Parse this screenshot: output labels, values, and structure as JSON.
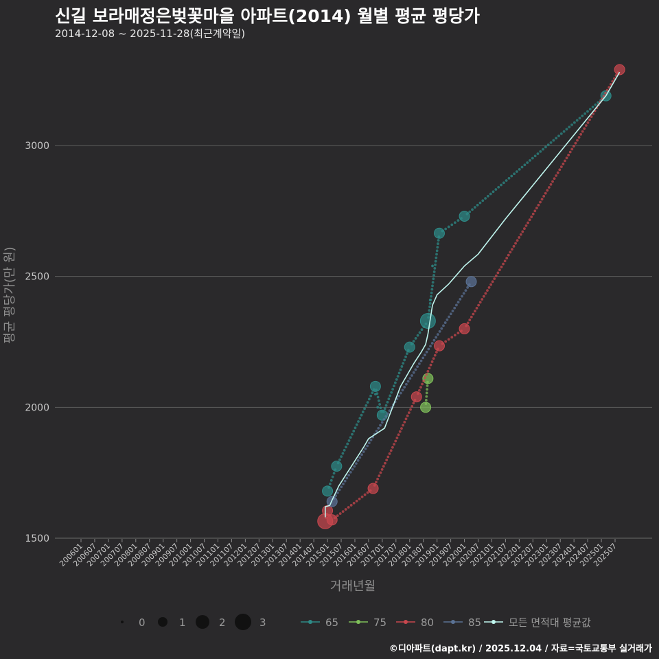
{
  "title": "신길 보라매정은벚꽃마을 아파트(2014) 월별 평균 평당가",
  "subtitle": "2014-12-08 ~ 2025-11-28(최근계약일)",
  "credit": "©디아파트(dapt.kr) / 2025.12.04 / 자료=국토교통부 실거래가",
  "chart_data": {
    "type": "line",
    "xlabel": "거래년월",
    "ylabel": "평균 평당가(만 원)",
    "ylim": [
      1500,
      3300
    ],
    "yticks": [
      1500,
      2000,
      2500,
      3000
    ],
    "x_categories": [
      "200601",
      "200607",
      "200701",
      "200707",
      "200801",
      "200807",
      "200901",
      "200907",
      "201001",
      "201007",
      "201101",
      "201107",
      "201201",
      "201207",
      "201301",
      "201307",
      "201401",
      "201407",
      "201501",
      "201507",
      "201601",
      "201607",
      "201701",
      "201707",
      "201801",
      "201807",
      "201901",
      "201907",
      "202001",
      "202007",
      "202101",
      "202107",
      "202201",
      "202207",
      "202301",
      "202307",
      "202401",
      "202407",
      "202501",
      "202507"
    ],
    "size_legend": {
      "values": [
        0,
        1,
        2,
        3
      ]
    },
    "series": [
      {
        "name": "65",
        "color": "#2e8b88",
        "points": [
          {
            "x": "2015-01",
            "y": 1680,
            "n": 1
          },
          {
            "x": "2015-05",
            "y": 1775,
            "n": 1
          },
          {
            "x": "2016-10",
            "y": 2080,
            "n": 1
          },
          {
            "x": "2017-01",
            "y": 1970,
            "n": 1
          },
          {
            "x": "2018-01",
            "y": 2230,
            "n": 1
          },
          {
            "x": "2018-09",
            "y": 2330,
            "n": 2
          },
          {
            "x": "2019-02",
            "y": 2665,
            "n": 1
          },
          {
            "x": "2020-01",
            "y": 2730,
            "n": 1
          },
          {
            "x": "2025-03",
            "y": 3190,
            "n": 1
          }
        ]
      },
      {
        "name": "75",
        "color": "#7fbf5a",
        "points": [
          {
            "x": "2018-08",
            "y": 2000,
            "n": 1
          },
          {
            "x": "2018-09",
            "y": 2110,
            "n": 1
          }
        ]
      },
      {
        "name": "80",
        "color": "#c8474e",
        "points": [
          {
            "x": "2014-12",
            "y": 1565,
            "n": 2
          },
          {
            "x": "2015-01",
            "y": 1605,
            "n": 1
          },
          {
            "x": "2015-03",
            "y": 1570,
            "n": 1
          },
          {
            "x": "2016-09",
            "y": 1690,
            "n": 1
          },
          {
            "x": "2018-04",
            "y": 2040,
            "n": 1
          },
          {
            "x": "2019-02",
            "y": 2235,
            "n": 1
          },
          {
            "x": "2020-01",
            "y": 2300,
            "n": 1
          },
          {
            "x": "2025-09",
            "y": 3290,
            "n": 1
          }
        ]
      },
      {
        "name": "85",
        "color": "#5b7295",
        "points": [
          {
            "x": "2015-03",
            "y": 1640,
            "n": 1
          },
          {
            "x": "2020-04",
            "y": 2480,
            "n": 1
          }
        ]
      }
    ],
    "average_line": {
      "name": "모든 면적대 평균값",
      "color": "#bff5ee"
    },
    "legend": [
      {
        "name": "65",
        "color": "#2e8b88"
      },
      {
        "name": "75",
        "color": "#7fbf5a"
      },
      {
        "name": "80",
        "color": "#c8474e"
      },
      {
        "name": "85",
        "color": "#5b7295"
      },
      {
        "name": "모든 면적대 평균값",
        "color": "#bff5ee"
      }
    ]
  }
}
